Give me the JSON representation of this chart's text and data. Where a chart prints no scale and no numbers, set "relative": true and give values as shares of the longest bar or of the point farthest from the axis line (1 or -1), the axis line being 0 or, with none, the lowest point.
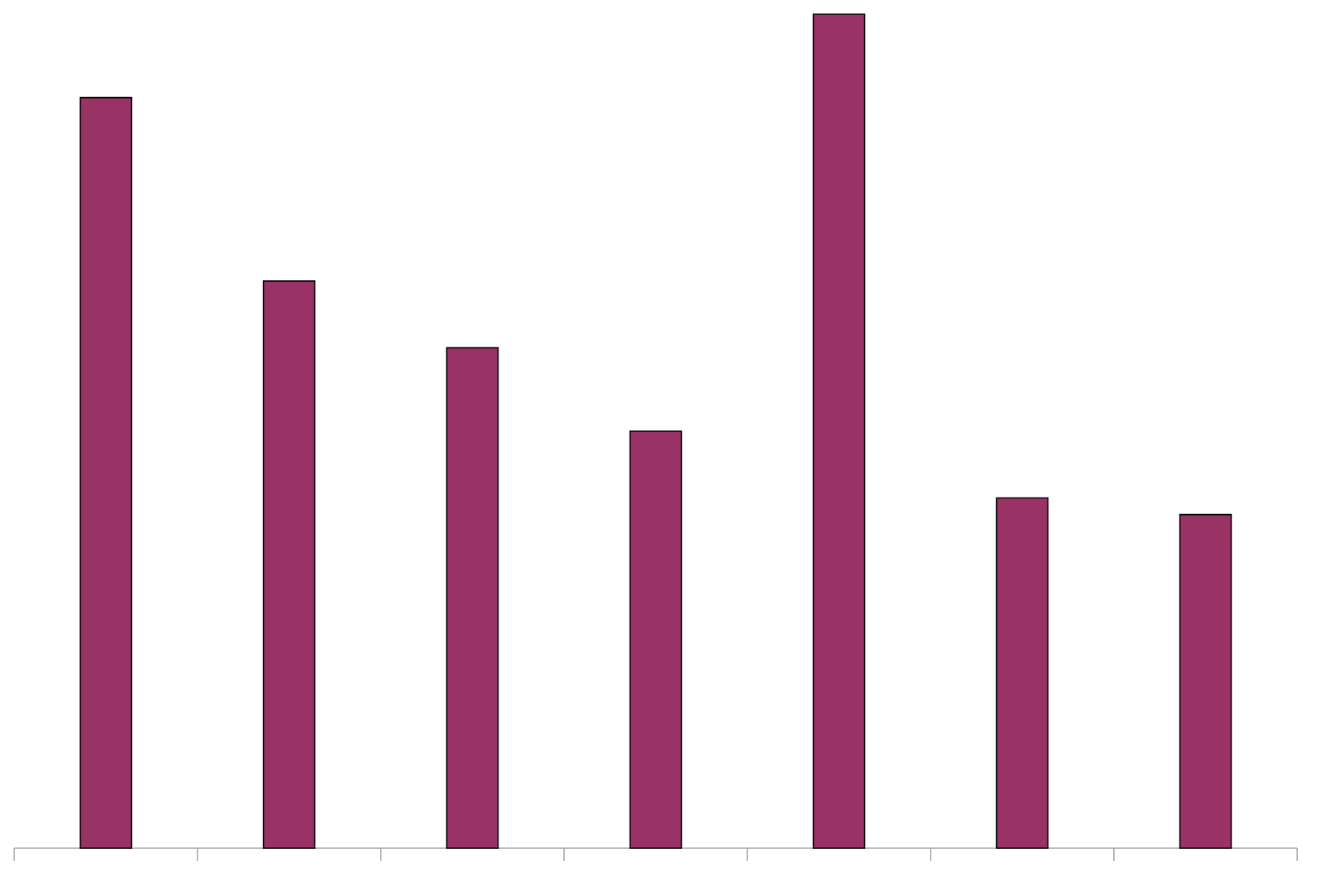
{
  "chart_data": {
    "type": "bar",
    "relative": true,
    "categories": [
      null,
      null,
      null,
      null,
      null,
      null,
      null
    ],
    "series": [
      {
        "color": "#993366",
        "values": [
          0.9,
          0.68,
          0.6,
          0.5,
          1,
          0.42,
          0.4
        ]
      }
    ]
  }
}
